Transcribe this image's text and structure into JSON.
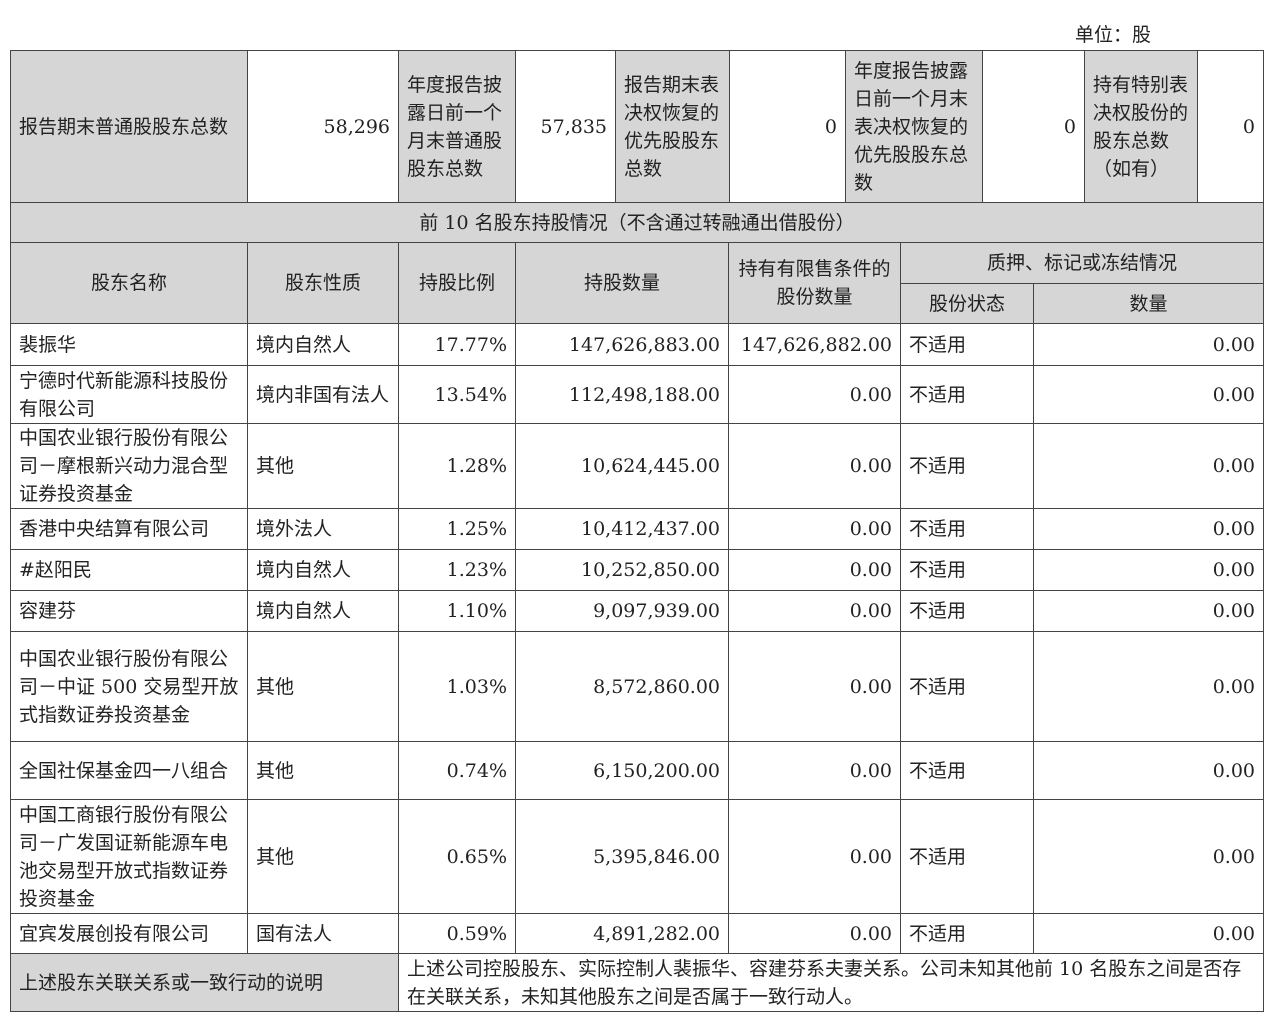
{
  "unit_label": "单位：股",
  "summary": [
    {
      "label": "报告期末普通股股东总数",
      "value": "58,296"
    },
    {
      "label": "年度报告披露日前一个月末普通股股东总数",
      "value": "57,835"
    },
    {
      "label": "报告期末表决权恢复的优先股股东总数",
      "value": "0"
    },
    {
      "label": "年度报告披露日前一个月末表决权恢复的优先股股东总数",
      "value": "0"
    },
    {
      "label": "持有特别表决权股份的股东总数（如有）",
      "value": "0"
    }
  ],
  "section_title": "前 10 名股东持股情况（不含通过转融通出借股份）",
  "headers": {
    "name": "股东名称",
    "nature": "股东性质",
    "ratio": "持股比例",
    "shares": "持股数量",
    "restricted": "持有有限售条件的股份数量",
    "pledge_group": "质押、标记或冻结情况",
    "pledge_status": "股份状态",
    "pledge_qty": "数量"
  },
  "rows": [
    {
      "name": "裴振华",
      "nature": "境内自然人",
      "ratio": "17.77%",
      "shares": "147,626,883.00",
      "restricted": "147,626,882.00",
      "status": "不适用",
      "qty": "0.00"
    },
    {
      "name": "宁德时代新能源科技股份有限公司",
      "nature": "境内非国有法人",
      "ratio": "13.54%",
      "shares": "112,498,188.00",
      "restricted": "0.00",
      "status": "不适用",
      "qty": "0.00"
    },
    {
      "name": "中国农业银行股份有限公司－摩根新兴动力混合型证券投资基金",
      "nature": "其他",
      "ratio": "1.28%",
      "shares": "10,624,445.00",
      "restricted": "0.00",
      "status": "不适用",
      "qty": "0.00"
    },
    {
      "name": "香港中央结算有限公司",
      "nature": "境外法人",
      "ratio": "1.25%",
      "shares": "10,412,437.00",
      "restricted": "0.00",
      "status": "不适用",
      "qty": "0.00"
    },
    {
      "name": "#赵阳民",
      "nature": "境内自然人",
      "ratio": "1.23%",
      "shares": "10,252,850.00",
      "restricted": "0.00",
      "status": "不适用",
      "qty": "0.00"
    },
    {
      "name": "容建芬",
      "nature": "境内自然人",
      "ratio": "1.10%",
      "shares": "9,097,939.00",
      "restricted": "0.00",
      "status": "不适用",
      "qty": "0.00"
    },
    {
      "name": "中国农业银行股份有限公司－中证 500 交易型开放式指数证券投资基金",
      "nature": "其他",
      "ratio": "1.03%",
      "shares": "8,572,860.00",
      "restricted": "0.00",
      "status": "不适用",
      "qty": "0.00"
    },
    {
      "name": "全国社保基金四一八组合",
      "nature": "其他",
      "ratio": "0.74%",
      "shares": "6,150,200.00",
      "restricted": "0.00",
      "status": "不适用",
      "qty": "0.00"
    },
    {
      "name": "中国工商银行股份有限公司－广发国证新能源车电池交易型开放式指数证券投资基金",
      "nature": "其他",
      "ratio": "0.65%",
      "shares": "5,395,846.00",
      "restricted": "0.00",
      "status": "不适用",
      "qty": "0.00"
    },
    {
      "name": "宜宾发展创投有限公司",
      "nature": "国有法人",
      "ratio": "0.59%",
      "shares": "4,891,282.00",
      "restricted": "0.00",
      "status": "不适用",
      "qty": "0.00"
    }
  ],
  "note": {
    "label": "上述股东关联关系或一致行动的说明",
    "text": "上述公司控股股东、实际控制人裴振华、容建芬系夫妻关系。公司未知其他前 10 名股东之间是否存在关联关系，未知其他股东之间是否属于一致行动人。"
  },
  "colors": {
    "header_bg": "#d6d6d6",
    "border": "#444444"
  }
}
